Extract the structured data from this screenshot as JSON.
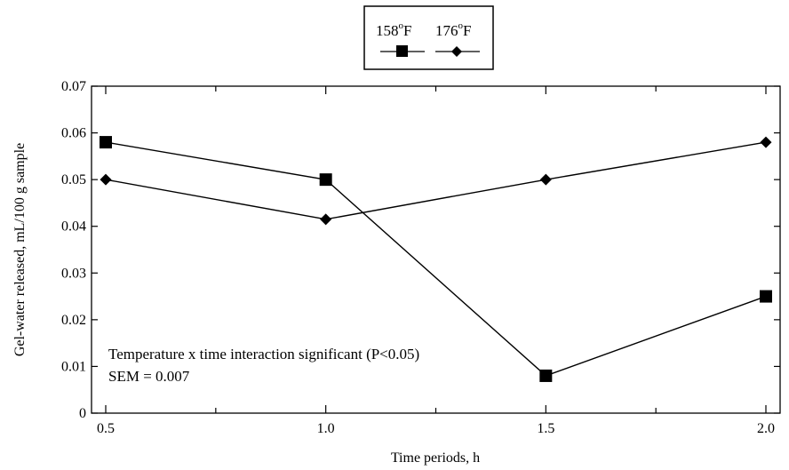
{
  "chart_data": {
    "type": "line",
    "title": "",
    "xlabel": "Time periods, h",
    "ylabel": "Gel-water released, mL/100 g sample",
    "xlim": [
      0.5,
      2.0
    ],
    "ylim": [
      0,
      0.07
    ],
    "x": [
      0.5,
      1.0,
      1.5,
      2.0
    ],
    "x_tick_labels": [
      "0.5",
      "1.0",
      "1.5",
      "2.0"
    ],
    "y_tick_labels": [
      "0",
      "0.01",
      "0.02",
      "0.03",
      "0.04",
      "0.05",
      "0.06",
      "0.07"
    ],
    "y_ticks": [
      0,
      0.01,
      0.02,
      0.03,
      0.04,
      0.05,
      0.06,
      0.07
    ],
    "legend_placement": "top-center",
    "series": [
      {
        "name": "158°F",
        "label_main": "158",
        "label_sup": "o",
        "label_unit": "F",
        "marker": "square",
        "color": "#000000",
        "values": [
          0.058,
          0.05,
          0.008,
          0.025
        ]
      },
      {
        "name": "176°F",
        "label_main": "176",
        "label_sup": "o",
        "label_unit": "F",
        "marker": "diamond",
        "color": "#000000",
        "values": [
          0.05,
          0.0415,
          0.05,
          0.058
        ]
      }
    ],
    "annotations": [
      "Temperature x time interaction significant (P<0.05)",
      "SEM = 0.007"
    ],
    "grid": false
  }
}
